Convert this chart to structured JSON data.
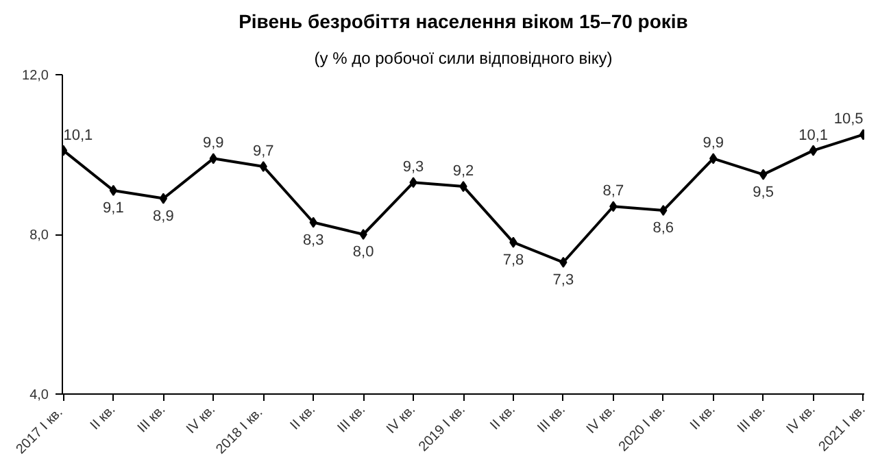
{
  "chart_data": {
    "type": "line",
    "title": "Рівень безробіття населення віком 15–70 років",
    "subtitle": "(у % до робочої сили відповідного віку)",
    "categories": [
      "2017  I кв.",
      "II кв.",
      "III кв.",
      "IV кв.",
      "2018  I кв.",
      "II кв.",
      "III кв.",
      "IV кв.",
      "2019 I кв.",
      "II кв.",
      "III кв.",
      "IV кв.",
      "2020 I кв.",
      "II кв.",
      "III кв.",
      "IV кв.",
      "2021 I кв."
    ],
    "series": [
      {
        "color": "#000000",
        "values": [
          10.1,
          9.1,
          8.9,
          9.9,
          9.7,
          8.3,
          8.0,
          9.3,
          9.2,
          7.8,
          7.3,
          8.7,
          8.6,
          9.9,
          9.5,
          10.1,
          10.5
        ],
        "value_labels": [
          "10,1",
          "9,1",
          "8,9",
          "9,9",
          "9,7",
          "8,3",
          "8,0",
          "9,3",
          "9,2",
          "7,8",
          "7,3",
          "8,7",
          "8,6",
          "9,9",
          "9,5",
          "10,1",
          "10,5"
        ]
      }
    ],
    "ylim": [
      4,
      12
    ],
    "yticks": [
      {
        "value": 4,
        "label": "4,0"
      },
      {
        "value": 8,
        "label": "8,0"
      },
      {
        "value": 12,
        "label": "12,0"
      }
    ],
    "grid": false,
    "marker": "diamond",
    "line_style": "solid"
  }
}
